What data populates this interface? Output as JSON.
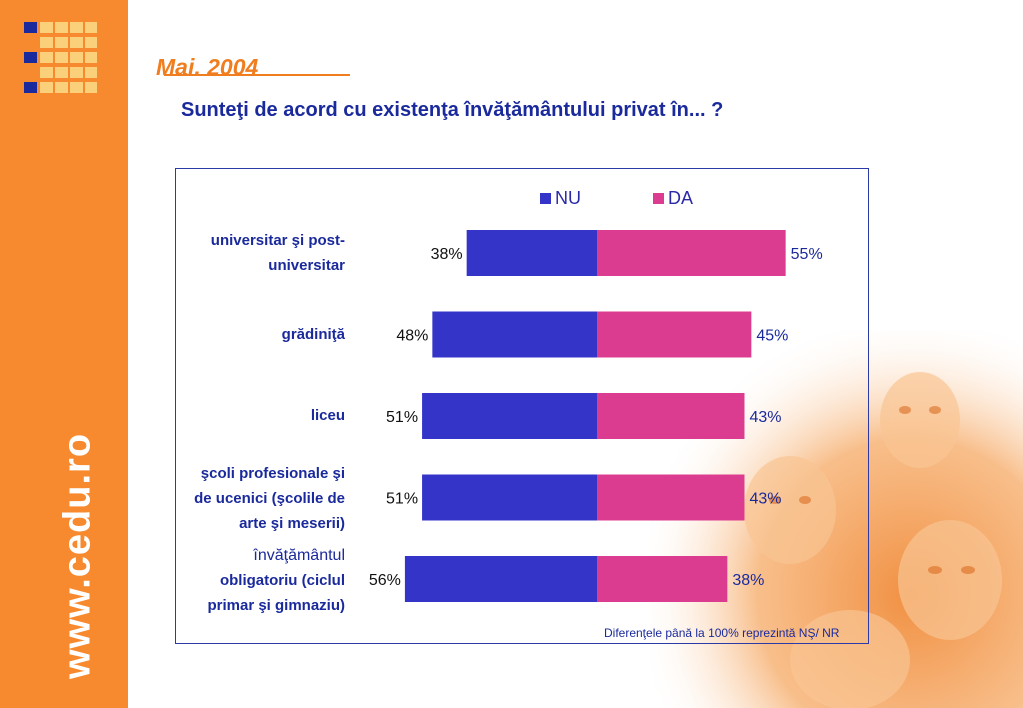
{
  "header": {
    "date": "Mai. 2004",
    "question": "Sunteţi de acord cu existenţa învăţământului privat în... ?"
  },
  "sidebar": {
    "url": "www.cedu.ro"
  },
  "colors": {
    "nu": "#3434c8",
    "da": "#dc3c8f",
    "sidebar": "#f7892e",
    "text": "#1a2a9c"
  },
  "legend": {
    "nu": "NU",
    "da": "DA"
  },
  "footnote": "Diferenţele până la 100% reprezintă NŞ/ NR",
  "chart_data": {
    "type": "bar",
    "orientation": "horizontal-diverging",
    "categories": [
      "universitar şi post-universitar",
      "grădiniţă",
      "liceu",
      "şcoli profesionale şi de ucenici (şcolile de arte şi meserii)",
      "învăţământul obligatoriu (ciclul primar şi gimnaziu)"
    ],
    "series": [
      {
        "name": "NU",
        "values": [
          38,
          48,
          51,
          51,
          56
        ]
      },
      {
        "name": "DA",
        "values": [
          55,
          45,
          43,
          43,
          38
        ]
      }
    ],
    "unit": "%",
    "legend_position": "top"
  },
  "labels": {
    "cat0": [
      "universitar şi post-",
      "universitar"
    ],
    "cat1": [
      "grădiniţă"
    ],
    "cat2": [
      "liceu"
    ],
    "cat3": [
      "şcoli profesionale şi",
      "de ucenici (şcolile de",
      "arte şi meserii)"
    ],
    "cat4": [
      "învăţământul",
      "obligatoriu (ciclul",
      "primar şi gimnaziu)"
    ]
  }
}
